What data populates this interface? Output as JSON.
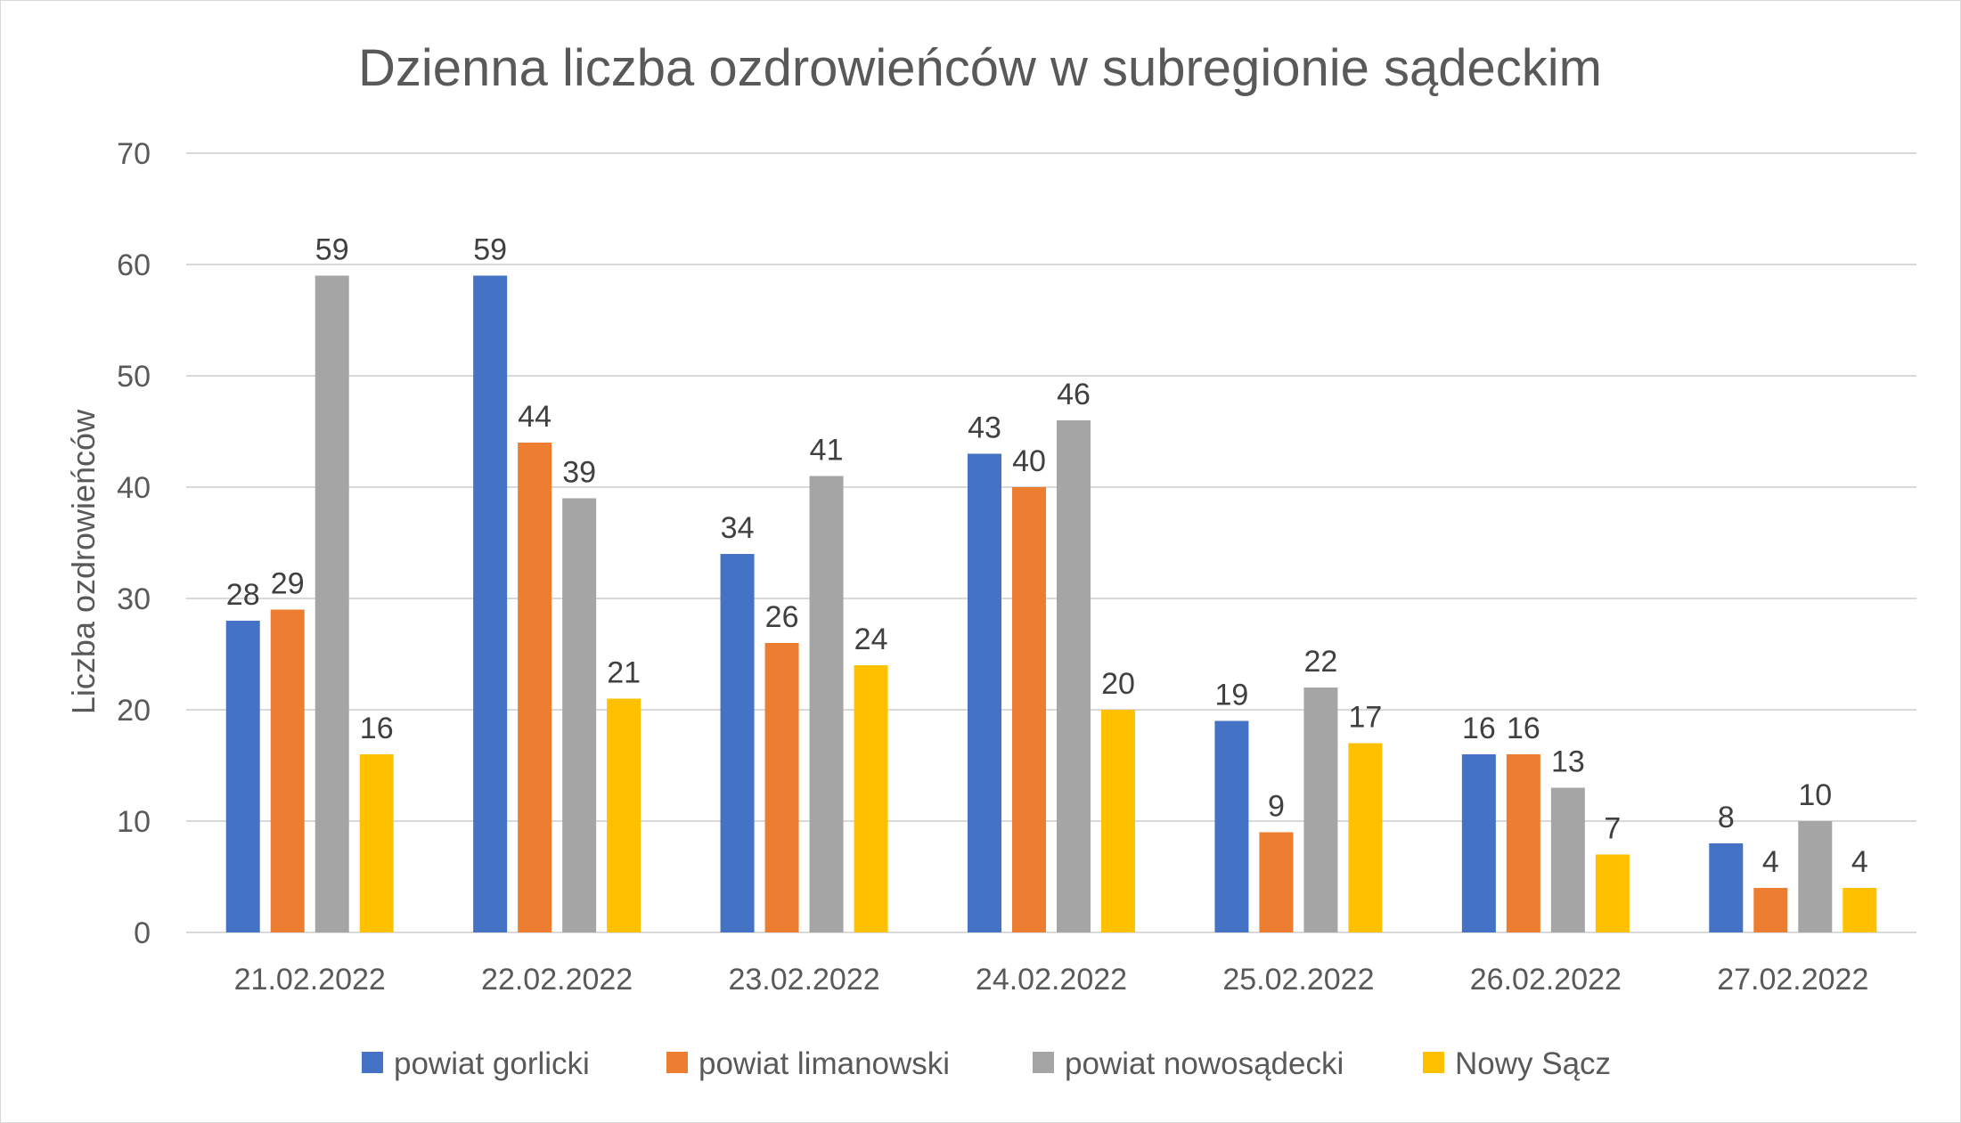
{
  "chart_data": {
    "type": "bar",
    "title": "Dzienna liczba ozdrowieńców w subregionie sądeckim",
    "xlabel": "",
    "ylabel": "Liczba ozdrowieńców",
    "ylim": [
      0,
      70
    ],
    "yticks": [
      0,
      10,
      20,
      30,
      40,
      50,
      60,
      70
    ],
    "grid": true,
    "legend_position": "bottom",
    "categories": [
      "21.02.2022",
      "22.02.2022",
      "23.02.2022",
      "24.02.2022",
      "25.02.2022",
      "26.02.2022",
      "27.02.2022"
    ],
    "series": [
      {
        "name": "powiat gorlicki",
        "color": "#4472c4",
        "values": [
          28,
          59,
          34,
          43,
          19,
          16,
          8
        ]
      },
      {
        "name": "powiat limanowski",
        "color": "#ed7d31",
        "values": [
          29,
          44,
          26,
          40,
          9,
          16,
          4
        ]
      },
      {
        "name": "powiat nowosądecki",
        "color": "#a5a5a5",
        "values": [
          59,
          39,
          41,
          46,
          22,
          13,
          10
        ]
      },
      {
        "name": "Nowy Sącz",
        "color": "#ffc000",
        "values": [
          16,
          21,
          24,
          20,
          17,
          7,
          4
        ]
      }
    ]
  }
}
